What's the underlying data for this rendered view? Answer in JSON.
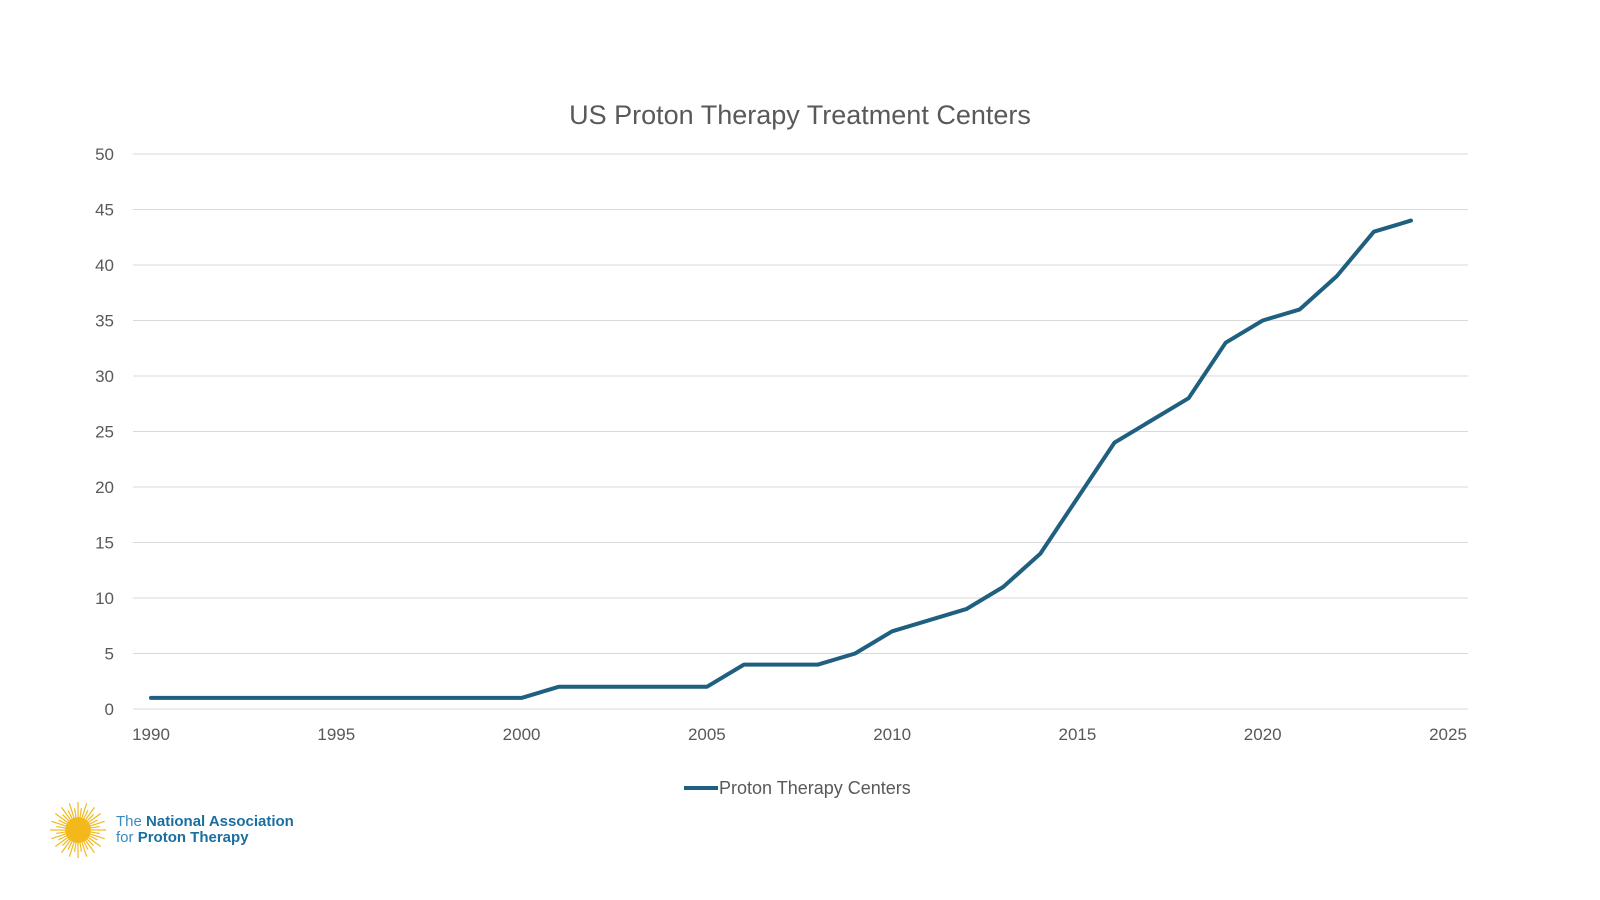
{
  "chart_data": {
    "type": "line",
    "title": "US Proton Therapy Treatment Centers",
    "xlabel": "",
    "ylabel": "",
    "xlim": [
      1990,
      2025
    ],
    "ylim": [
      0,
      50
    ],
    "xticks": [
      1990,
      1995,
      2000,
      2005,
      2010,
      2015,
      2020,
      2025
    ],
    "yticks": [
      0,
      5,
      10,
      15,
      20,
      25,
      30,
      35,
      40,
      45,
      50
    ],
    "grid": "horizontal",
    "legend_position": "bottom",
    "series": [
      {
        "name": "Proton Therapy Centers",
        "color": "#1f5f7f",
        "x": [
          1990,
          1991,
          1992,
          1993,
          1994,
          1995,
          1996,
          1997,
          1998,
          1999,
          2000,
          2001,
          2002,
          2003,
          2004,
          2005,
          2006,
          2007,
          2008,
          2009,
          2010,
          2011,
          2012,
          2013,
          2014,
          2015,
          2016,
          2017,
          2018,
          2019,
          2020,
          2021,
          2022,
          2023,
          2024
        ],
        "y": [
          1,
          1,
          1,
          1,
          1,
          1,
          1,
          1,
          1,
          1,
          1,
          2,
          2,
          2,
          2,
          2,
          4,
          4,
          4,
          5,
          7,
          8,
          9,
          11,
          14,
          19,
          24,
          26,
          28,
          33,
          35,
          36,
          39,
          43,
          44
        ]
      }
    ]
  },
  "logo": {
    "line1_light": "The",
    "line1_bold": "National Association",
    "line2_light": "for",
    "line2_bold": "Proton Therapy",
    "sun_color": "#f2b81c"
  }
}
